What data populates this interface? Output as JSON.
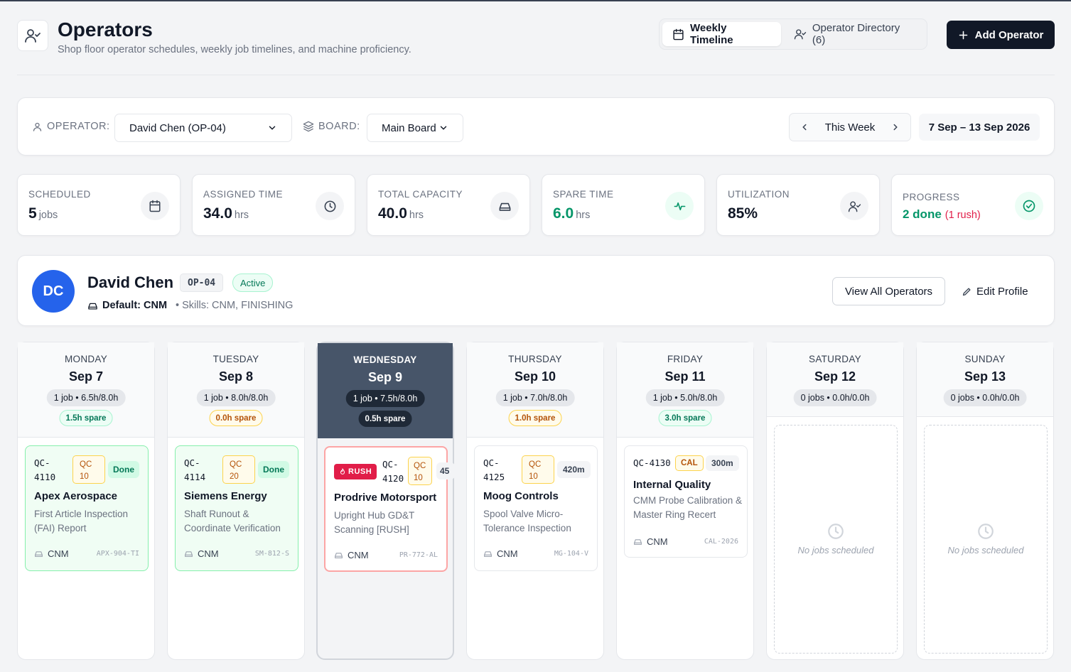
{
  "header": {
    "title": "Operators",
    "subtitle": "Shop floor operator schedules, weekly job timelines, and machine proficiency.",
    "tabs": [
      {
        "label": "Weekly Timeline",
        "icon": "calendar-icon",
        "active": true
      },
      {
        "label": "Operator Directory (6)",
        "icon": "user-check-icon",
        "active": false
      }
    ],
    "add_button": "Add Operator"
  },
  "filters": {
    "operator_label": "OPERATOR:",
    "operator_value": "David Chen (OP-04)",
    "board_label": "BOARD:",
    "board_value": "Main Board",
    "week_label": "This Week",
    "date_range": "7 Sep – 13 Sep 2026"
  },
  "stats": [
    {
      "label": "SCHEDULED",
      "value": "5",
      "unit": "jobs",
      "icon": "calendar-icon"
    },
    {
      "label": "ASSIGNED TIME",
      "value": "34.0",
      "unit": "hrs",
      "icon": "clock-icon"
    },
    {
      "label": "TOTAL CAPACITY",
      "value": "40.0",
      "unit": "hrs",
      "icon": "machine-icon"
    },
    {
      "label": "SPARE TIME",
      "value": "6.0",
      "unit": "hrs",
      "icon": "activity-icon",
      "color": "#059669"
    },
    {
      "label": "UTILIZATION",
      "value": "85%",
      "unit": "",
      "icon": "user-check-icon"
    },
    {
      "label": "PROGRESS",
      "value": "2 done",
      "extra": "(1 rush)",
      "icon": "check-circle-icon",
      "color": "#059669",
      "extra_color": "#e11d48"
    }
  ],
  "operator": {
    "initials": "DC",
    "name": "David Chen",
    "code": "OP-04",
    "status": "Active",
    "default_label": "Default: CNM",
    "skills": "• Skills: CNM, FINISHING",
    "view_all": "View All Operators",
    "edit": "Edit Profile"
  },
  "days": [
    {
      "name": "MONDAY",
      "date": "Sep 7",
      "load": "1 job • 6.5h/8.0h",
      "spare": "1.5h spare",
      "spare_tone": "green",
      "job": {
        "id_a": "QC-",
        "id_b": "4110",
        "qc_a": "QC",
        "qc_b": "10",
        "badge": "Done",
        "customer": "Apex Aerospace",
        "desc": "First Article Inspection (FAI) Report",
        "machine": "CNM",
        "ref": "APX-904-TI",
        "style": "done"
      }
    },
    {
      "name": "TUESDAY",
      "date": "Sep 8",
      "load": "1 job • 8.0h/8.0h",
      "spare": "0.0h spare",
      "spare_tone": "amber",
      "job": {
        "id_a": "QC-",
        "id_b": "4114",
        "qc_a": "QC",
        "qc_b": "20",
        "badge": "Done",
        "customer": "Siemens Energy",
        "desc": "Shaft Runout & Coordinate Verification",
        "machine": "CNM",
        "ref": "SM-812-S",
        "style": "done"
      }
    },
    {
      "name": "WEDNESDAY",
      "date": "Sep 9",
      "load": "1 job • 7.5h/8.0h",
      "spare": "0.5h spare",
      "spare_tone": "dark",
      "today": true,
      "job": {
        "rush": "RUSH",
        "id_a": "QC-",
        "id_b": "4120",
        "qc_a": "QC",
        "qc_b": "10",
        "badge": "45",
        "customer": "Prodrive Motorsport",
        "desc": "Upright Hub GD&T Scanning [RUSH]",
        "machine": "CNM",
        "ref": "PR-772-AL",
        "style": "rush"
      }
    },
    {
      "name": "THURSDAY",
      "date": "Sep 10",
      "load": "1 job • 7.0h/8.0h",
      "spare": "1.0h spare",
      "spare_tone": "amber",
      "job": {
        "id_a": "QC-",
        "id_b": "4125",
        "qc_a": "QC",
        "qc_b": "10",
        "badge": "420m",
        "customer": "Moog Controls",
        "desc": "Spool Valve Micro-Tolerance Inspection",
        "machine": "CNM",
        "ref": "MG-104-V",
        "style": "plain"
      }
    },
    {
      "name": "FRIDAY",
      "date": "Sep 11",
      "load": "1 job • 5.0h/8.0h",
      "spare": "3.0h spare",
      "spare_tone": "green",
      "job": {
        "id_full": "QC-4130",
        "cal": "CAL",
        "badge": "300m",
        "customer": "Internal Quality",
        "desc": "CMM Probe Calibration & Master Ring Recert",
        "machine": "CNM",
        "ref": "CAL-2026",
        "style": "cal"
      }
    },
    {
      "name": "SATURDAY",
      "date": "Sep 12",
      "load": "0 jobs • 0.0h/0.0h",
      "empty": "No jobs scheduled"
    },
    {
      "name": "SUNDAY",
      "date": "Sep 13",
      "load": "0 jobs • 0.0h/0.0h",
      "empty": "No jobs scheduled"
    }
  ]
}
